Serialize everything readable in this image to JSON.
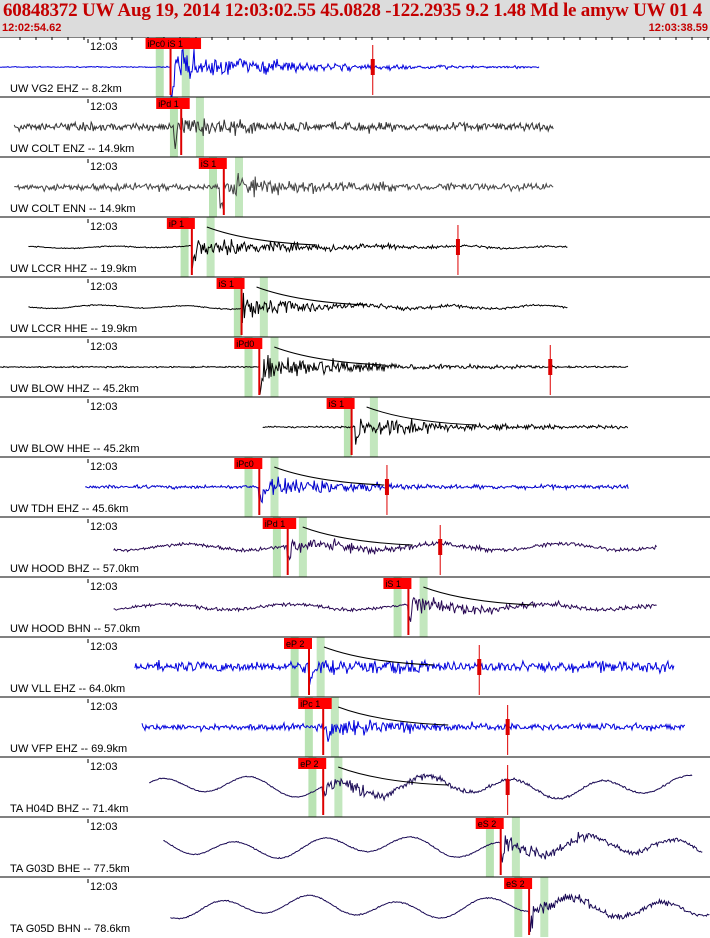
{
  "header": {
    "title": "60848372 UW Aug 19, 2014 12:03:02.55    45.0828 -122.2935  9.2 1.48 Md le amyw UW 01   4",
    "start_time": "12:02:54.62",
    "end_time": "12:03:38.59"
  },
  "colors": {
    "header_bg": "#dcdcdc",
    "header_text": "#c40000",
    "pick_box": "#ff0000",
    "pick_line": "#dd0000",
    "window_band": "#b9e3b3"
  },
  "traces": [
    {
      "time_label": "12:03",
      "label": "UW VG2 EHZ -- 8.2km",
      "color": "#0000dd",
      "start": 0.0,
      "end": 0.76,
      "pick": "iPc0 iS 1",
      "pick_pos": 0.205,
      "pick2_pos": 0.245,
      "onset": 0.24,
      "amp": 0.95,
      "noise": 0.03,
      "kind": "hf",
      "red_marks": [
        0.525
      ],
      "band_pos": 0.225
    },
    {
      "time_label": "12:03",
      "label": "UW COLT ENZ -- 14.9km",
      "color": "#333333",
      "start": 0.02,
      "end": 0.78,
      "pick": "iPd 1",
      "pick_pos": 0.22,
      "onset": 0.245,
      "amp": 0.7,
      "noise": 0.22,
      "kind": "hf",
      "red_marks": [],
      "band_pos": 0.245
    },
    {
      "time_label": "12:03",
      "label": "UW COLT ENN -- 14.9km",
      "color": "#444444",
      "start": 0.02,
      "end": 0.78,
      "pick": "iS 1",
      "pick_pos": 0.28,
      "onset": 0.31,
      "amp": 0.65,
      "noise": 0.2,
      "kind": "hf",
      "red_marks": [],
      "band_pos": 0.3
    },
    {
      "time_label": "12:03",
      "label": "UW LCCR HHZ -- 19.9km",
      "color": "#000000",
      "start": 0.04,
      "end": 0.8,
      "pick": "iP 1",
      "pick_pos": 0.235,
      "onset": 0.27,
      "amp": 0.6,
      "noise": 0.05,
      "kind": "lf",
      "red_marks": [
        0.645
      ],
      "band_pos": 0.26
    },
    {
      "time_label": "12:03",
      "label": "UW LCCR HHE -- 19.9km",
      "color": "#000000",
      "start": 0.04,
      "end": 0.8,
      "pick": "iS 1",
      "pick_pos": 0.305,
      "onset": 0.34,
      "amp": 0.5,
      "noise": 0.08,
      "kind": "lf",
      "red_marks": [],
      "band_pos": 0.335
    },
    {
      "time_label": "12:03",
      "label": "UW BLOW HHZ -- 45.2km",
      "color": "#000000",
      "start": 0.0,
      "end": 0.885,
      "pick": "iPd0",
      "pick_pos": 0.33,
      "onset": 0.365,
      "amp": 0.7,
      "noise": 0.04,
      "kind": "hf",
      "red_marks": [
        0.775
      ],
      "band_pos": 0.35
    },
    {
      "time_label": "12:03",
      "label": "UW BLOW HHE -- 45.2km",
      "color": "#000000",
      "start": 0.37,
      "end": 0.885,
      "pick": "iS 1",
      "pick_pos": 0.46,
      "onset": 0.5,
      "amp": 0.6,
      "noise": 0.05,
      "kind": "hf",
      "red_marks": [],
      "band_pos": 0.49
    },
    {
      "time_label": "12:03",
      "label": "UW TDH EHZ -- 45.6km",
      "color": "#0000cc",
      "start": 0.12,
      "end": 0.885,
      "pick": "iPc0",
      "pick_pos": 0.33,
      "onset": 0.365,
      "amp": 0.6,
      "noise": 0.1,
      "kind": "hf",
      "red_marks": [
        0.545
      ],
      "band_pos": 0.35
    },
    {
      "time_label": "12:03",
      "label": "UW HOOD BHZ -- 57.0km",
      "color": "#2a0a55",
      "start": 0.16,
      "end": 0.925,
      "pick": "iPd 1",
      "pick_pos": 0.37,
      "onset": 0.405,
      "amp": 0.45,
      "noise": 0.22,
      "kind": "mixed",
      "red_marks": [
        0.62
      ],
      "band_pos": 0.39
    },
    {
      "time_label": "12:03",
      "label": "UW HOOD BHN -- 57.0km",
      "color": "#2a0a55",
      "start": 0.16,
      "end": 0.925,
      "pick": "iS 1",
      "pick_pos": 0.54,
      "onset": 0.575,
      "amp": 0.45,
      "noise": 0.2,
      "kind": "mixed",
      "red_marks": [],
      "band_pos": 0.56
    },
    {
      "time_label": "12:03",
      "label": "UW VLL EHZ -- 64.0km",
      "color": "#0000dd",
      "start": 0.19,
      "end": 0.95,
      "pick": "eP 2",
      "pick_pos": 0.4,
      "onset": 0.435,
      "amp": 0.45,
      "noise": 0.3,
      "kind": "hf",
      "red_marks": [
        0.675
      ],
      "band_pos": 0.415
    },
    {
      "time_label": "12:03",
      "label": "UW VFP EHZ -- 69.9km",
      "color": "#0000dd",
      "start": 0.2,
      "end": 0.965,
      "pick": "iPc 1",
      "pick_pos": 0.42,
      "onset": 0.46,
      "amp": 0.5,
      "noise": 0.18,
      "kind": "hf",
      "red_marks": [
        0.715
      ],
      "band_pos": 0.435
    },
    {
      "time_label": "12:03",
      "label": "TA H04D BHZ -- 71.4km",
      "color": "#1a0a55",
      "start": 0.21,
      "end": 0.975,
      "pick": "eP 2",
      "pick_pos": 0.42,
      "onset": 0.455,
      "amp": 0.45,
      "noise": 0.45,
      "kind": "lf",
      "red_marks": [
        0.715
      ],
      "band_pos": 0.44
    },
    {
      "time_label": "12:03",
      "label": "TA G03D BHE -- 77.5km",
      "color": "#1a0a55",
      "start": 0.23,
      "end": 0.99,
      "pick": "eS 2",
      "pick_pos": 0.67,
      "onset": 0.705,
      "amp": 0.5,
      "noise": 0.45,
      "kind": "lf",
      "red_marks": [],
      "band_pos": 0.69
    },
    {
      "time_label": "12:03",
      "label": "TA G05D BHN -- 78.6km",
      "color": "#1a0a55",
      "start": 0.24,
      "end": 1.0,
      "pick": "eS 2",
      "pick_pos": 0.71,
      "onset": 0.745,
      "amp": 0.45,
      "noise": 0.45,
      "kind": "lf",
      "red_marks": [],
      "band_pos": 0.73
    }
  ]
}
